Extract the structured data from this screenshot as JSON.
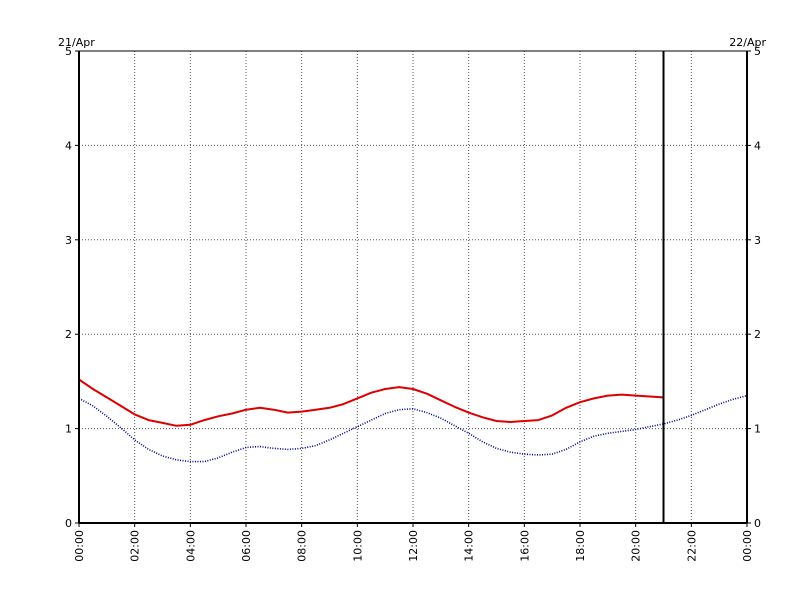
{
  "chart_data": {
    "type": "line",
    "date_left": "21/Apr",
    "date_right": "22/Apr",
    "xlim": [
      0,
      24
    ],
    "ylim": [
      0,
      5
    ],
    "yticks": [
      0,
      1,
      2,
      3,
      4,
      5
    ],
    "xtick_labels": [
      "00:00",
      "02:00",
      "04:00",
      "06:00",
      "08:00",
      "10:00",
      "12:00",
      "14:00",
      "16:00",
      "18:00",
      "20:00",
      "22:00",
      "00:00"
    ],
    "grid": true,
    "now_marker_hour": 21,
    "series": [
      {
        "color": "#dd0000",
        "style": "solid-noisy",
        "x": [
          0,
          0.5,
          1,
          1.5,
          2,
          2.5,
          3,
          3.5,
          4,
          4.5,
          5,
          5.5,
          6,
          6.5,
          7,
          7.5,
          8,
          8.5,
          9,
          9.5,
          10,
          10.5,
          11,
          11.5,
          12,
          12.5,
          13,
          13.5,
          14,
          14.5,
          15,
          15.5,
          16,
          16.5,
          17,
          17.5,
          18,
          18.5,
          19,
          19.5,
          20,
          20.5,
          21
        ],
        "values": [
          1.52,
          1.42,
          1.33,
          1.24,
          1.15,
          1.09,
          1.06,
          1.03,
          1.04,
          1.09,
          1.13,
          1.16,
          1.2,
          1.22,
          1.2,
          1.17,
          1.18,
          1.2,
          1.22,
          1.26,
          1.32,
          1.38,
          1.42,
          1.44,
          1.42,
          1.37,
          1.3,
          1.23,
          1.17,
          1.12,
          1.08,
          1.07,
          1.08,
          1.09,
          1.14,
          1.22,
          1.28,
          1.32,
          1.35,
          1.36,
          1.35,
          1.34,
          1.33
        ]
      },
      {
        "color": "#000099",
        "style": "dotted",
        "x": [
          0,
          0.5,
          1,
          1.5,
          2,
          2.5,
          3,
          3.5,
          4,
          4.5,
          5,
          5.5,
          6,
          6.5,
          7,
          7.5,
          8,
          8.5,
          9,
          9.5,
          10,
          10.5,
          11,
          11.5,
          12,
          12.5,
          13,
          13.5,
          14,
          14.5,
          15,
          15.5,
          16,
          16.5,
          17,
          17.5,
          18,
          18.5,
          19,
          19.5,
          20,
          20.5,
          21,
          21.5,
          22,
          22.5,
          23,
          23.5,
          24
        ],
        "values": [
          1.32,
          1.24,
          1.13,
          1.01,
          0.88,
          0.78,
          0.71,
          0.67,
          0.65,
          0.65,
          0.69,
          0.75,
          0.8,
          0.81,
          0.79,
          0.78,
          0.79,
          0.82,
          0.88,
          0.95,
          1.02,
          1.09,
          1.16,
          1.2,
          1.21,
          1.17,
          1.11,
          1.03,
          0.95,
          0.86,
          0.79,
          0.75,
          0.73,
          0.72,
          0.73,
          0.78,
          0.86,
          0.92,
          0.95,
          0.97,
          0.99,
          1.02,
          1.05,
          1.09,
          1.14,
          1.2,
          1.26,
          1.31,
          1.35
        ]
      }
    ]
  }
}
